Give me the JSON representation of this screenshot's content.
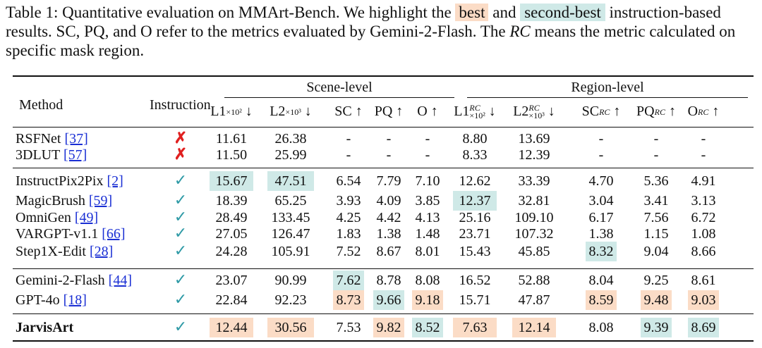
{
  "caption": {
    "part1": "Table 1: Quantitative evaluation on MMArt-Bench. We highlight the ",
    "best": "best",
    "and": " and ",
    "second_best": "second-best",
    "part2": " instruction-based results. SC, PQ, and O refer to the metrics evaluated by Gemini-2-Flash. The ",
    "rc": "RC",
    "part3": " means the metric calculated on specific mask region."
  },
  "header": {
    "method": "Method",
    "instruction": "Instruction",
    "scene_level": "Scene-level",
    "region_level": "Region-level",
    "scene_cols": [
      {
        "base": "L1",
        "sub": "×10²",
        "sup": "",
        "arrow": "↓"
      },
      {
        "base": "L2",
        "sub": "×10³",
        "sup": "",
        "arrow": "↓"
      },
      {
        "base": "SC",
        "sub": "",
        "sup": "",
        "arrow": "↑"
      },
      {
        "base": "PQ",
        "sub": "",
        "sup": "",
        "arrow": "↑"
      },
      {
        "base": "O",
        "sub": "",
        "sup": "",
        "arrow": "↑"
      }
    ],
    "region_cols": [
      {
        "base": "L1",
        "sub": "×10²",
        "sup": "RC",
        "arrow": "↓"
      },
      {
        "base": "L2",
        "sub": "×10³",
        "sup": "RC",
        "arrow": "↓"
      },
      {
        "base": "SC",
        "sub": "",
        "sup": "RC",
        "arrow": "↑"
      },
      {
        "base": "PQ",
        "sub": "",
        "sup": "RC",
        "arrow": "↑"
      },
      {
        "base": "O",
        "sub": "",
        "sup": "RC",
        "arrow": "↑"
      }
    ]
  },
  "rows": [
    {
      "name": "RSFNet",
      "cite": "[37]",
      "instruction": "✗",
      "bold": false,
      "values": [
        "11.61",
        "26.38",
        "-",
        "-",
        "-",
        "8.80",
        "13.69",
        "-",
        "-",
        "-"
      ],
      "best": [],
      "second": []
    },
    {
      "name": "3DLUT",
      "cite": "[57]",
      "instruction": "✗",
      "bold": false,
      "values": [
        "11.50",
        "25.99",
        "-",
        "-",
        "-",
        "8.33",
        "12.39",
        "-",
        "-",
        "-"
      ],
      "best": [],
      "second": []
    },
    {
      "name": "InstructPix2Pix",
      "cite": "[2]",
      "instruction": "✓",
      "bold": false,
      "values": [
        "15.67",
        "47.51",
        "6.54",
        "7.79",
        "7.10",
        "12.62",
        "33.39",
        "4.70",
        "5.36",
        "4.91"
      ],
      "best": [],
      "second": [
        0,
        1
      ]
    },
    {
      "name": "MagicBrush",
      "cite": "[59]",
      "instruction": "✓",
      "bold": false,
      "values": [
        "18.39",
        "65.25",
        "3.93",
        "4.09",
        "3.85",
        "12.37",
        "32.81",
        "3.04",
        "3.41",
        "3.13"
      ],
      "best": [],
      "second": [
        5
      ]
    },
    {
      "name": "OmniGen",
      "cite": "[49]",
      "instruction": "✓",
      "bold": false,
      "values": [
        "28.49",
        "133.45",
        "4.25",
        "4.42",
        "4.13",
        "25.16",
        "109.10",
        "6.17",
        "7.56",
        "6.72"
      ],
      "best": [],
      "second": []
    },
    {
      "name": "VARGPT-v1.1",
      "cite": "[66]",
      "instruction": "✓",
      "bold": false,
      "values": [
        "27.05",
        "126.47",
        "1.83",
        "1.38",
        "1.48",
        "23.71",
        "107.32",
        "1.38",
        "1.15",
        "1.08"
      ],
      "best": [],
      "second": []
    },
    {
      "name": "Step1X-Edit",
      "cite": "[28]",
      "instruction": "✓",
      "bold": false,
      "values": [
        "24.28",
        "105.91",
        "7.52",
        "8.67",
        "8.01",
        "15.43",
        "45.85",
        "8.32",
        "9.04",
        "8.66"
      ],
      "best": [],
      "second": [
        7
      ]
    },
    {
      "name": "Gemini-2-Flash",
      "cite": "[44]",
      "instruction": "✓",
      "bold": false,
      "values": [
        "23.07",
        "90.99",
        "7.62",
        "8.78",
        "8.08",
        "16.52",
        "52.88",
        "8.04",
        "9.25",
        "8.61"
      ],
      "best": [],
      "second": [
        2
      ]
    },
    {
      "name": "GPT-4o",
      "cite": "[18]",
      "instruction": "✓",
      "bold": false,
      "values": [
        "22.84",
        "92.23",
        "8.73",
        "9.66",
        "9.18",
        "15.71",
        "47.87",
        "8.59",
        "9.48",
        "9.03"
      ],
      "best": [
        2,
        4,
        7,
        8,
        9
      ],
      "second": [
        3
      ]
    },
    {
      "name": "JarvisArt",
      "cite": "",
      "instruction": "✓",
      "bold": true,
      "values": [
        "12.44",
        "30.56",
        "7.53",
        "9.82",
        "8.52",
        "7.63",
        "12.14",
        "8.08",
        "9.39",
        "8.69"
      ],
      "best": [
        0,
        1,
        3,
        5,
        6
      ],
      "second": [
        4,
        8,
        9
      ]
    }
  ]
}
